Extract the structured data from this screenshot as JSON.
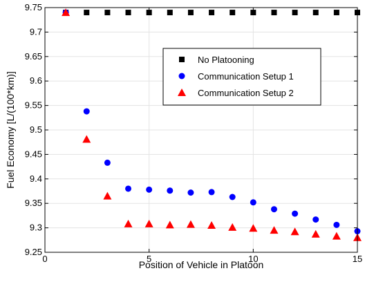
{
  "chart_data": {
    "type": "scatter",
    "xlabel": "Position of Vehicle in Platoon",
    "ylabel": "Fuel Economy [L/(100*km)]",
    "xlim": [
      0,
      15
    ],
    "ylim": [
      9.25,
      9.75
    ],
    "xticks": [
      0,
      5,
      10,
      15
    ],
    "yticks": [
      9.25,
      9.3,
      9.35,
      9.4,
      9.45,
      9.5,
      9.55,
      9.6,
      9.65,
      9.7,
      9.75
    ],
    "grid": true,
    "legend_position": "upper-right",
    "series": [
      {
        "name": "No Platooning",
        "marker": "square",
        "color": "#000000",
        "x": [
          1,
          2,
          3,
          4,
          5,
          6,
          7,
          8,
          9,
          10,
          11,
          12,
          13,
          14,
          15
        ],
        "y": [
          9.74,
          9.74,
          9.74,
          9.74,
          9.74,
          9.74,
          9.74,
          9.74,
          9.74,
          9.74,
          9.74,
          9.74,
          9.74,
          9.74,
          9.74
        ]
      },
      {
        "name": "Communication Setup 1",
        "marker": "circle",
        "color": "#0000ff",
        "x": [
          1,
          2,
          3,
          4,
          5,
          6,
          7,
          8,
          9,
          10,
          11,
          12,
          13,
          14,
          15
        ],
        "y": [
          9.74,
          9.538,
          9.433,
          9.38,
          9.378,
          9.376,
          9.372,
          9.373,
          9.363,
          9.352,
          9.338,
          9.329,
          9.317,
          9.306,
          9.293
        ]
      },
      {
        "name": "Communication Setup 2",
        "marker": "triangle",
        "color": "#ff0000",
        "x": [
          1,
          2,
          3,
          4,
          5,
          6,
          7,
          8,
          9,
          10,
          11,
          12,
          13,
          14,
          15
        ],
        "y": [
          9.74,
          9.481,
          9.365,
          9.308,
          9.308,
          9.306,
          9.307,
          9.305,
          9.301,
          9.299,
          9.295,
          9.292,
          9.287,
          9.283,
          9.28
        ]
      }
    ]
  }
}
